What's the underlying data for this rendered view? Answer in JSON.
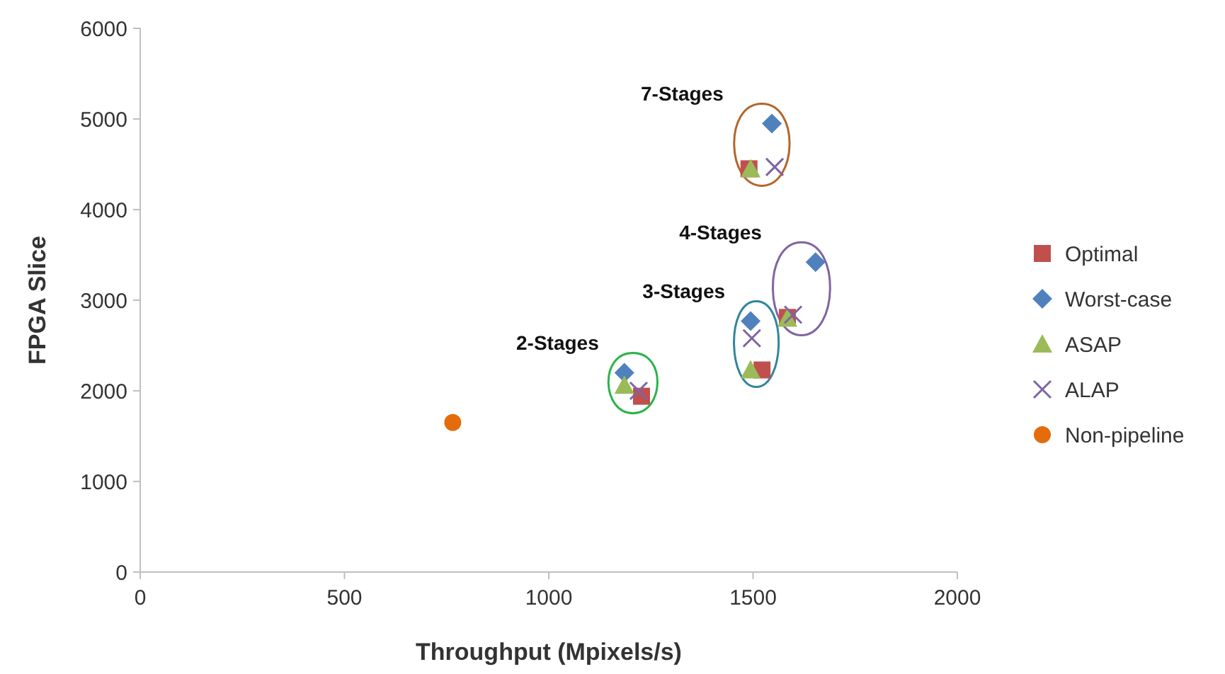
{
  "chart_data": {
    "type": "scatter",
    "xlabel": "Throughput (Mpixels/s)",
    "ylabel": "FPGA Slice",
    "xlim": [
      0,
      2000
    ],
    "xticks": [
      0,
      500,
      1000,
      1500,
      2000
    ],
    "ylim": [
      0,
      6000
    ],
    "yticks": [
      0,
      1000,
      2000,
      3000,
      4000,
      5000,
      6000
    ],
    "grid": false,
    "legend": "right",
    "series": [
      {
        "name": "Optimal",
        "color": "#c0504d",
        "marker": "square",
        "x": [
          1227,
          1522,
          1584,
          1490
        ],
        "values": [
          1940,
          2230,
          2810,
          4450
        ]
      },
      {
        "name": "Worst-case",
        "color": "#4f81bd",
        "marker": "diamond",
        "x": [
          1185,
          1494,
          1653,
          1546
        ],
        "values": [
          2200,
          2770,
          3420,
          4950
        ]
      },
      {
        "name": "ASAP",
        "color": "#9bbb59",
        "marker": "triangle",
        "x": [
          1185,
          1494,
          1584,
          1494
        ],
        "values": [
          2060,
          2230,
          2800,
          4450
        ]
      },
      {
        "name": "ALAP",
        "color": "#8064a2",
        "marker": "cross",
        "x": [
          1220,
          1497,
          1598,
          1553
        ],
        "values": [
          2000,
          2580,
          2840,
          4470
        ]
      },
      {
        "name": "Non-pipeline",
        "color": "#e46c0a",
        "marker": "circle",
        "x": [
          765
        ],
        "values": [
          1650
        ]
      }
    ],
    "annotations": [
      "2-Stages",
      "3-Stages",
      "4-Stages",
      "7-Stages"
    ]
  }
}
